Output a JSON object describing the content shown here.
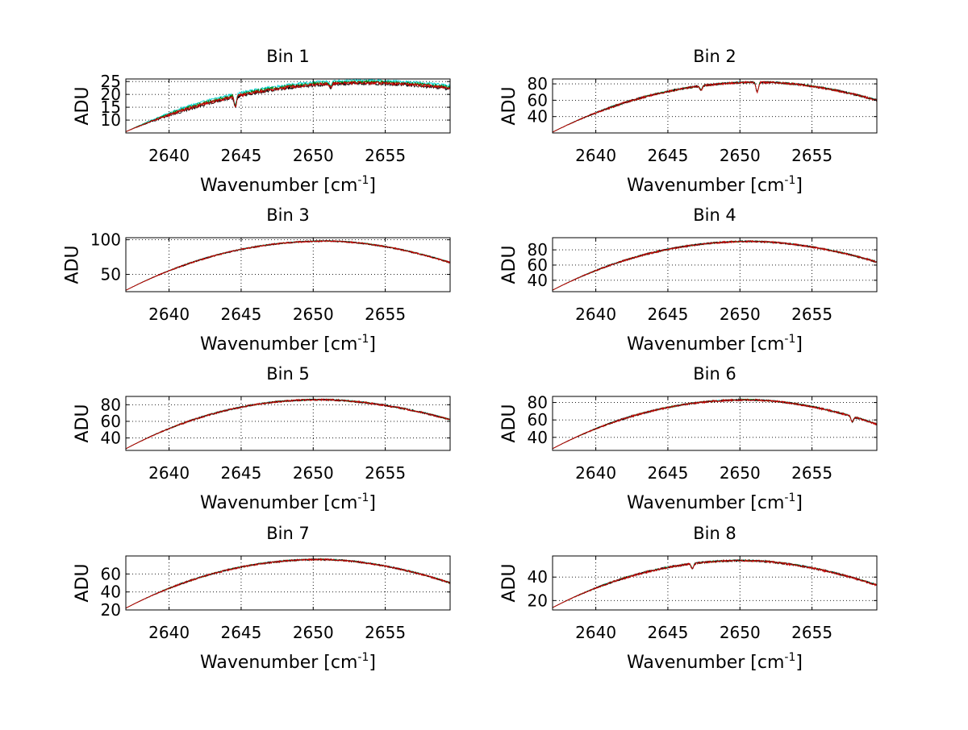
{
  "chart_data": {
    "type": "line",
    "layout": "4x2 subplot grid",
    "xlim": [
      2637,
      2659.5
    ],
    "xticks": [
      2640,
      2645,
      2650,
      2655
    ],
    "xlabel": "Wavenumber [cm",
    "xlabel_sup": "-1",
    "xlabel_close": "]",
    "ylabel": "ADU",
    "grid": true,
    "series_colors": {
      "spectrum_a": "#00d5d5",
      "spectrum_b": "#008000",
      "spectrum_c": "#000000",
      "spectrum_d": "#cc0000"
    },
    "panels": [
      {
        "title": "Bin 1",
        "ylim": [
          5,
          26
        ],
        "yticks": [
          10,
          15,
          20,
          25
        ],
        "start": 5.5,
        "peak": 24.5,
        "peak_x": 2653.5,
        "end": 22.5,
        "noise": 0.6,
        "mid_offset": -0.3,
        "dips": [
          [
            2644.6,
            4
          ],
          [
            2651.2,
            1.5
          ]
        ]
      },
      {
        "title": "Bin 2",
        "ylim": [
          20,
          86
        ],
        "yticks": [
          40,
          60,
          80
        ],
        "start": 21,
        "peak": 82,
        "peak_x": 2651.5,
        "end": 60,
        "noise": 1.2,
        "mid_offset": 0,
        "dips": [
          [
            2651.2,
            12
          ],
          [
            2647.3,
            5
          ]
        ]
      },
      {
        "title": "Bin 3",
        "ylim": [
          25,
          103
        ],
        "yticks": [
          50,
          100
        ],
        "start": 27,
        "peak": 98,
        "peak_x": 2651.0,
        "end": 67,
        "noise": 1.0,
        "mid_offset": 0,
        "dips": []
      },
      {
        "title": "Bin 4",
        "ylim": [
          25,
          96
        ],
        "yticks": [
          40,
          60,
          80
        ],
        "start": 27,
        "peak": 91,
        "peak_x": 2650.8,
        "end": 64,
        "noise": 1.1,
        "mid_offset": 0,
        "dips": []
      },
      {
        "title": "Bin 5",
        "ylim": [
          25,
          90
        ],
        "yticks": [
          40,
          60,
          80
        ],
        "start": 27,
        "peak": 86,
        "peak_x": 2650.5,
        "end": 62,
        "noise": 1.0,
        "mid_offset": 0,
        "dips": []
      },
      {
        "title": "Bin 6",
        "ylim": [
          25,
          87
        ],
        "yticks": [
          40,
          60,
          80
        ],
        "start": 27,
        "peak": 83,
        "peak_x": 2650.6,
        "end": 55,
        "noise": 1.0,
        "mid_offset": 0,
        "dips": [
          [
            2657.8,
            6
          ]
        ]
      },
      {
        "title": "Bin 7",
        "ylim": [
          20,
          80
        ],
        "yticks": [
          20,
          40,
          60
        ],
        "start": 22,
        "peak": 76,
        "peak_x": 2650.6,
        "end": 50,
        "noise": 0.9,
        "mid_offset": 0,
        "dips": []
      },
      {
        "title": "Bin 8",
        "ylim": [
          12,
          58
        ],
        "yticks": [
          20,
          40
        ],
        "start": 14,
        "peak": 54,
        "peak_x": 2650.3,
        "end": 33,
        "noise": 0.8,
        "mid_offset": 0,
        "dips": [
          [
            2646.7,
            4
          ]
        ]
      }
    ]
  }
}
